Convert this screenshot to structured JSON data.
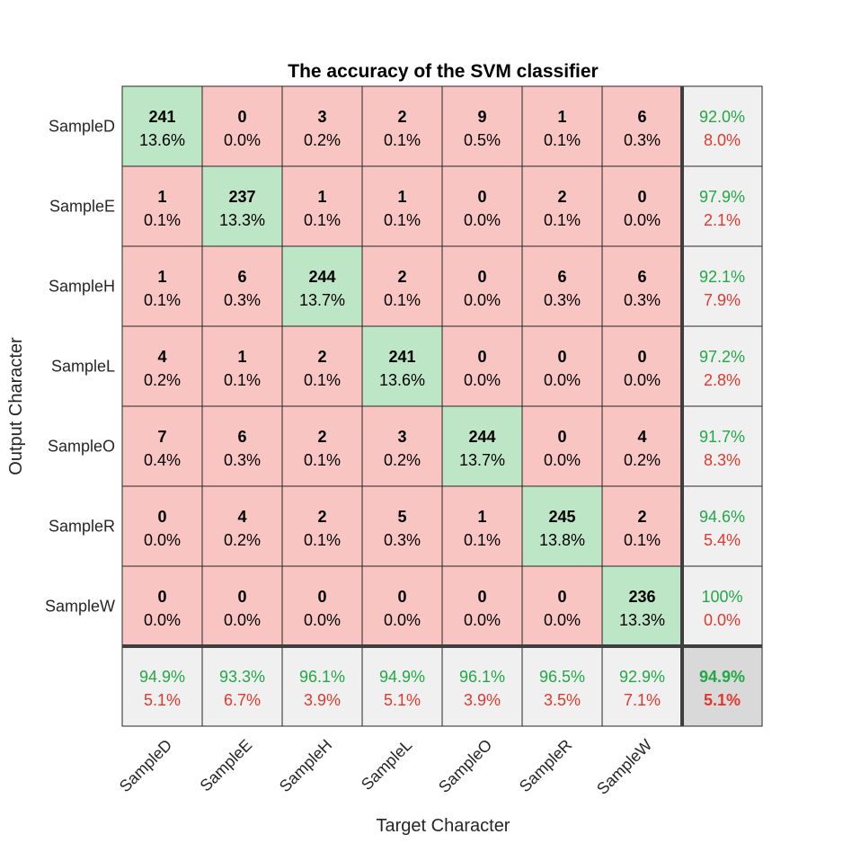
{
  "chart_data": {
    "type": "heatmap",
    "title": "The accuracy of the SVM classifier",
    "xlabel": "Target Character",
    "ylabel": "Output Character",
    "classes": [
      "SampleD",
      "SampleE",
      "SampleH",
      "SampleL",
      "SampleO",
      "SampleR",
      "SampleW"
    ],
    "matrix": [
      [
        241,
        0,
        3,
        2,
        9,
        1,
        6
      ],
      [
        1,
        237,
        1,
        1,
        0,
        2,
        0
      ],
      [
        1,
        6,
        244,
        2,
        0,
        6,
        6
      ],
      [
        4,
        1,
        2,
        241,
        0,
        0,
        0
      ],
      [
        7,
        6,
        2,
        3,
        244,
        0,
        4
      ],
      [
        0,
        4,
        2,
        5,
        1,
        245,
        2
      ],
      [
        0,
        0,
        0,
        0,
        0,
        0,
        236
      ]
    ],
    "cell_percents": [
      [
        "13.6%",
        "0.0%",
        "0.2%",
        "0.1%",
        "0.5%",
        "0.1%",
        "0.3%"
      ],
      [
        "0.1%",
        "13.3%",
        "0.1%",
        "0.1%",
        "0.0%",
        "0.1%",
        "0.0%"
      ],
      [
        "0.1%",
        "0.3%",
        "13.7%",
        "0.1%",
        "0.0%",
        "0.3%",
        "0.3%"
      ],
      [
        "0.2%",
        "0.1%",
        "0.1%",
        "13.6%",
        "0.0%",
        "0.0%",
        "0.0%"
      ],
      [
        "0.4%",
        "0.3%",
        "0.1%",
        "0.2%",
        "13.7%",
        "0.0%",
        "0.2%"
      ],
      [
        "0.0%",
        "0.2%",
        "0.1%",
        "0.3%",
        "0.1%",
        "13.8%",
        "0.1%"
      ],
      [
        "0.0%",
        "0.0%",
        "0.0%",
        "0.0%",
        "0.0%",
        "0.0%",
        "13.3%"
      ]
    ],
    "row_summary": [
      {
        "correct": "92.0%",
        "incorrect": "8.0%"
      },
      {
        "correct": "97.9%",
        "incorrect": "2.1%"
      },
      {
        "correct": "92.1%",
        "incorrect": "7.9%"
      },
      {
        "correct": "97.2%",
        "incorrect": "2.8%"
      },
      {
        "correct": "91.7%",
        "incorrect": "8.3%"
      },
      {
        "correct": "94.6%",
        "incorrect": "5.4%"
      },
      {
        "correct": "100%",
        "incorrect": "0.0%"
      }
    ],
    "col_summary": [
      {
        "correct": "94.9%",
        "incorrect": "5.1%"
      },
      {
        "correct": "93.3%",
        "incorrect": "6.7%"
      },
      {
        "correct": "96.1%",
        "incorrect": "3.9%"
      },
      {
        "correct": "94.9%",
        "incorrect": "5.1%"
      },
      {
        "correct": "96.1%",
        "incorrect": "3.9%"
      },
      {
        "correct": "96.5%",
        "incorrect": "3.5%"
      },
      {
        "correct": "92.9%",
        "incorrect": "7.1%"
      }
    ],
    "overall": {
      "correct": "94.9%",
      "incorrect": "5.1%"
    },
    "grid": true,
    "colors": {
      "diagonal": "#bde6c7",
      "off_diagonal": "#f8c5c3",
      "summary": "#f0f0f0",
      "overall": "#d9d9d9",
      "correct_text": "#22a845",
      "incorrect_text": "#e0382d",
      "border": "#262626"
    }
  }
}
